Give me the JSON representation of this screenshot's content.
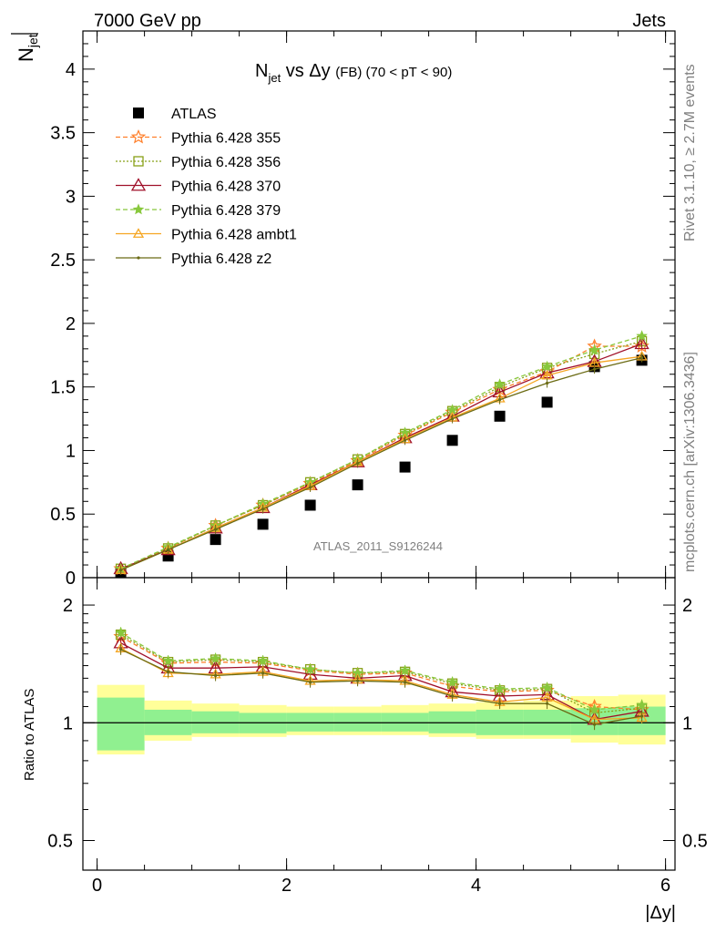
{
  "header": {
    "left": "7000 GeV pp",
    "right": "Jets",
    "side_top": "Rivet 3.1.10, ≥ 2.7M events",
    "side_bottom": "mcplots.cern.ch [arXiv:1306.3436]"
  },
  "plot_title": {
    "n": "N",
    "jet_sub": "jet",
    "vs": " vs Δy ",
    "fb": "(FB)",
    "range": " (70 < pT <  90)"
  },
  "top_ylabel": {
    "n": "N",
    "sub": "jet"
  },
  "ratio_ylabel": "Ratio to ATLAS",
  "xlabel": "|Δy|",
  "watermark": "ATLAS_2011_S9126244",
  "chart_data": [
    {
      "type": "scatter",
      "title": "Njet vs Δy (FB) (70 < pT < 90)",
      "xlabel": "|Δy|",
      "ylabel": "Njet",
      "xlim": [
        -0.15,
        6.1
      ],
      "ylim": [
        0,
        4.3
      ],
      "xticks": [
        0,
        2,
        4,
        6
      ],
      "yticks": [
        0,
        0.5,
        1,
        1.5,
        2,
        2.5,
        3,
        3.5,
        4
      ],
      "ytick_labels": [
        "0",
        "0.5",
        "1",
        "1.5",
        "2",
        "2.5",
        "3",
        "3.5",
        "4"
      ],
      "x": [
        0.25,
        0.75,
        1.25,
        1.75,
        2.25,
        2.75,
        3.25,
        3.75,
        4.25,
        4.75,
        5.25,
        5.75
      ],
      "legend_placement": "top-left",
      "series": [
        {
          "name": "ATLAS",
          "color": "#000000",
          "marker": "square",
          "dash": "",
          "lines": false,
          "values": [
            0.04,
            0.17,
            0.3,
            0.42,
            0.57,
            0.73,
            0.87,
            1.08,
            1.27,
            1.38,
            1.66,
            1.71
          ]
        },
        {
          "name": "Pythia 6.428 355",
          "color": "#ff7f2a",
          "marker": "star",
          "dash": "5,3",
          "lines": true,
          "values": [
            0.07,
            0.23,
            0.41,
            0.57,
            0.74,
            0.92,
            1.12,
            1.3,
            1.48,
            1.62,
            1.82,
            1.82
          ]
        },
        {
          "name": "Pythia 6.428 356",
          "color": "#88a018",
          "marker": "square-open",
          "dash": "2,2",
          "lines": true,
          "values": [
            0.07,
            0.23,
            0.41,
            0.57,
            0.75,
            0.93,
            1.13,
            1.31,
            1.5,
            1.65,
            1.76,
            1.86
          ]
        },
        {
          "name": "Pythia 6.428 370",
          "color": "#a0102a",
          "marker": "triangle-open",
          "dash": "",
          "lines": true,
          "values": [
            0.07,
            0.22,
            0.39,
            0.55,
            0.73,
            0.91,
            1.1,
            1.27,
            1.46,
            1.61,
            1.7,
            1.84
          ]
        },
        {
          "name": "Pythia 6.428 379",
          "color": "#88c83c",
          "marker": "star-small",
          "dash": "5,3",
          "lines": true,
          "values": [
            0.07,
            0.24,
            0.41,
            0.58,
            0.75,
            0.93,
            1.14,
            1.32,
            1.52,
            1.66,
            1.79,
            1.9
          ]
        },
        {
          "name": "Pythia 6.428 ambt1",
          "color": "#f5a623",
          "marker": "triangle-open-small",
          "dash": "",
          "lines": true,
          "values": [
            0.06,
            0.22,
            0.39,
            0.55,
            0.72,
            0.91,
            1.09,
            1.26,
            1.41,
            1.59,
            1.69,
            1.74
          ]
        },
        {
          "name": "Pythia 6.428 z2",
          "color": "#6b6b14",
          "marker": "dot",
          "dash": "",
          "lines": true,
          "values": [
            0.06,
            0.22,
            0.38,
            0.54,
            0.71,
            0.9,
            1.08,
            1.25,
            1.4,
            1.53,
            1.64,
            1.73
          ]
        }
      ]
    },
    {
      "type": "line",
      "title": "",
      "xlabel": "|Δy|",
      "ylabel": "Ratio to ATLAS",
      "xlim": [
        -0.15,
        6.1
      ],
      "ylim": [
        0.42,
        2.35
      ],
      "log_scale_y": true,
      "yticks": [
        0.5,
        1,
        2
      ],
      "ytick_labels": [
        "0.5",
        "1",
        "2"
      ],
      "xticks": [
        0,
        2,
        4,
        6
      ],
      "xtick_labels": [
        "0",
        "2",
        "4",
        "6"
      ],
      "reference_line": 1,
      "bins": [
        [
          0,
          0.5
        ],
        [
          0.5,
          1.0
        ],
        [
          1.0,
          1.5
        ],
        [
          1.5,
          2.0
        ],
        [
          2.0,
          2.5
        ],
        [
          2.5,
          3.0
        ],
        [
          3.0,
          3.5
        ],
        [
          3.5,
          4.0
        ],
        [
          4.0,
          4.5
        ],
        [
          4.5,
          5.0
        ],
        [
          5.0,
          5.5
        ],
        [
          5.5,
          6.0
        ]
      ],
      "band_inner": [
        [
          0.85,
          1.16
        ],
        [
          0.93,
          1.08
        ],
        [
          0.94,
          1.07
        ],
        [
          0.94,
          1.06
        ],
        [
          0.95,
          1.06
        ],
        [
          0.95,
          1.06
        ],
        [
          0.95,
          1.06
        ],
        [
          0.94,
          1.07
        ],
        [
          0.93,
          1.08
        ],
        [
          0.93,
          1.08
        ],
        [
          0.93,
          1.09
        ],
        [
          0.93,
          1.1
        ]
      ],
      "band_outer": [
        [
          0.83,
          1.25
        ],
        [
          0.9,
          1.14
        ],
        [
          0.92,
          1.12
        ],
        [
          0.92,
          1.11
        ],
        [
          0.93,
          1.1
        ],
        [
          0.93,
          1.1
        ],
        [
          0.93,
          1.11
        ],
        [
          0.92,
          1.12
        ],
        [
          0.91,
          1.13
        ],
        [
          0.91,
          1.14
        ],
        [
          0.89,
          1.17
        ],
        [
          0.88,
          1.18
        ]
      ],
      "band_inner_color": "#90f090",
      "band_outer_color": "#ffff99",
      "x": [
        0.25,
        0.75,
        1.25,
        1.75,
        2.25,
        2.75,
        3.25,
        3.75,
        4.25,
        4.75,
        5.25,
        5.75
      ],
      "series": [
        {
          "name": "Pythia 6.428 355",
          "color": "#ff7f2a",
          "marker": "star",
          "dash": "5,3",
          "values": [
            1.66,
            1.42,
            1.43,
            1.42,
            1.36,
            1.33,
            1.34,
            1.24,
            1.2,
            1.21,
            1.1,
            1.08
          ]
        },
        {
          "name": "Pythia 6.428 356",
          "color": "#88a018",
          "marker": "square-open",
          "dash": "2,2",
          "values": [
            1.68,
            1.43,
            1.45,
            1.43,
            1.37,
            1.34,
            1.35,
            1.26,
            1.21,
            1.22,
            1.06,
            1.09
          ]
        },
        {
          "name": "Pythia 6.428 370",
          "color": "#a0102a",
          "marker": "triangle-open",
          "dash": "",
          "values": [
            1.6,
            1.38,
            1.38,
            1.39,
            1.33,
            1.3,
            1.32,
            1.2,
            1.17,
            1.18,
            1.02,
            1.07
          ]
        },
        {
          "name": "Pythia 6.428 379",
          "color": "#88c83c",
          "marker": "star-small",
          "dash": "5,3",
          "values": [
            1.7,
            1.44,
            1.46,
            1.44,
            1.37,
            1.34,
            1.36,
            1.27,
            1.22,
            1.23,
            1.08,
            1.11
          ]
        },
        {
          "name": "Pythia 6.428 ambt1",
          "color": "#f5a623",
          "marker": "triangle-open-small",
          "dash": "",
          "values": [
            1.55,
            1.34,
            1.33,
            1.35,
            1.28,
            1.29,
            1.28,
            1.18,
            1.13,
            1.16,
            1.02,
            1.03
          ]
        },
        {
          "name": "Pythia 6.428 z2",
          "color": "#6b6b14",
          "marker": "dot",
          "dash": "",
          "values": [
            1.54,
            1.35,
            1.32,
            1.34,
            1.27,
            1.28,
            1.27,
            1.17,
            1.12,
            1.12,
            0.99,
            1.04
          ]
        }
      ]
    }
  ]
}
